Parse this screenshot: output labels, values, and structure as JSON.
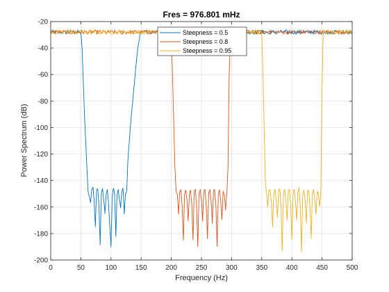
{
  "chart_data": {
    "type": "line",
    "title": "Fres = 976.801 mHz",
    "xlabel": "Frequency (Hz)",
    "ylabel": "Power Spectrum (dB)",
    "xlim": [
      0,
      500
    ],
    "ylim": [
      -200,
      -20
    ],
    "xticks": [
      0,
      50,
      100,
      150,
      200,
      250,
      300,
      350,
      400,
      450,
      500
    ],
    "yticks": [
      -200,
      -180,
      -160,
      -140,
      -120,
      -100,
      -80,
      -60,
      -40,
      -20
    ],
    "grid": true,
    "legend_position": "top-center",
    "series": [
      {
        "name": "Steepness = 0.5",
        "color": "#0072BD",
        "stop_band": [
          52,
          150
        ],
        "x": [
          0,
          10,
          20,
          30,
          40,
          50,
          52,
          56,
          60,
          62,
          64,
          66,
          68,
          70,
          72,
          74,
          76,
          78,
          80,
          82,
          84,
          86,
          88,
          90,
          92,
          94,
          96,
          98,
          100,
          102,
          104,
          106,
          108,
          110,
          112,
          114,
          116,
          118,
          120,
          122,
          124,
          126,
          128,
          132,
          136,
          140,
          144,
          148,
          150,
          160,
          200,
          250,
          300,
          350,
          400,
          450,
          500
        ],
        "y": [
          -28,
          -28,
          -28,
          -28,
          -28,
          -28,
          -40,
          -90,
          -130,
          -148,
          -152,
          -157,
          -147,
          -145,
          -155,
          -175,
          -148,
          -146,
          -160,
          -188,
          -150,
          -146,
          -155,
          -165,
          -150,
          -147,
          -158,
          -175,
          -190,
          -152,
          -146,
          -150,
          -182,
          -150,
          -147,
          -155,
          -160,
          -148,
          -146,
          -165,
          -150,
          -148,
          -125,
          -100,
          -80,
          -60,
          -42,
          -30,
          -28,
          -28,
          -28,
          -28,
          -28,
          -28,
          -28,
          -28,
          -28
        ]
      },
      {
        "name": "Steepness = 0.8",
        "color": "#D95319",
        "stop_band": [
          202,
          298
        ],
        "x": [
          0,
          50,
          100,
          150,
          200,
          202,
          206,
          208,
          210,
          212,
          214,
          216,
          218,
          220,
          222,
          224,
          226,
          228,
          230,
          232,
          234,
          236,
          238,
          240,
          242,
          244,
          246,
          248,
          250,
          252,
          254,
          256,
          258,
          260,
          262,
          264,
          266,
          268,
          270,
          272,
          274,
          276,
          278,
          280,
          282,
          284,
          286,
          288,
          290,
          292,
          294,
          296,
          298,
          300,
          350,
          400,
          450,
          500
        ],
        "y": [
          -28,
          -28,
          -28,
          -28,
          -28,
          -60,
          -130,
          -148,
          -150,
          -165,
          -148,
          -147,
          -160,
          -185,
          -150,
          -147,
          -155,
          -170,
          -150,
          -147,
          -158,
          -185,
          -148,
          -146,
          -160,
          -190,
          -150,
          -147,
          -155,
          -170,
          -148,
          -147,
          -160,
          -183,
          -150,
          -147,
          -155,
          -172,
          -148,
          -147,
          -160,
          -190,
          -150,
          -147,
          -155,
          -170,
          -148,
          -150,
          -162,
          -150,
          -130,
          -60,
          -30,
          -28,
          -28,
          -28,
          -28,
          -28
        ]
      },
      {
        "name": "Steepness = 0.95",
        "color": "#EDB120",
        "stop_band": [
          352,
          450
        ],
        "x": [
          0,
          50,
          100,
          150,
          200,
          250,
          300,
          350,
          352,
          356,
          358,
          360,
          362,
          364,
          366,
          368,
          370,
          372,
          374,
          376,
          378,
          380,
          382,
          384,
          386,
          388,
          390,
          392,
          394,
          396,
          398,
          400,
          402,
          404,
          406,
          408,
          410,
          412,
          414,
          416,
          418,
          420,
          422,
          424,
          426,
          428,
          430,
          432,
          434,
          436,
          438,
          440,
          442,
          444,
          446,
          448,
          450,
          452,
          500
        ],
        "y": [
          -28,
          -28,
          -28,
          -28,
          -28,
          -28,
          -28,
          -28,
          -60,
          -140,
          -150,
          -160,
          -148,
          -147,
          -158,
          -175,
          -150,
          -147,
          -155,
          -168,
          -148,
          -146,
          -160,
          -193,
          -150,
          -147,
          -155,
          -170,
          -148,
          -147,
          -160,
          -185,
          -150,
          -147,
          -155,
          -170,
          -148,
          -146,
          -160,
          -193,
          -150,
          -147,
          -155,
          -172,
          -148,
          -147,
          -160,
          -183,
          -150,
          -147,
          -155,
          -165,
          -148,
          -150,
          -160,
          -148,
          -70,
          -28,
          -28
        ]
      }
    ]
  }
}
